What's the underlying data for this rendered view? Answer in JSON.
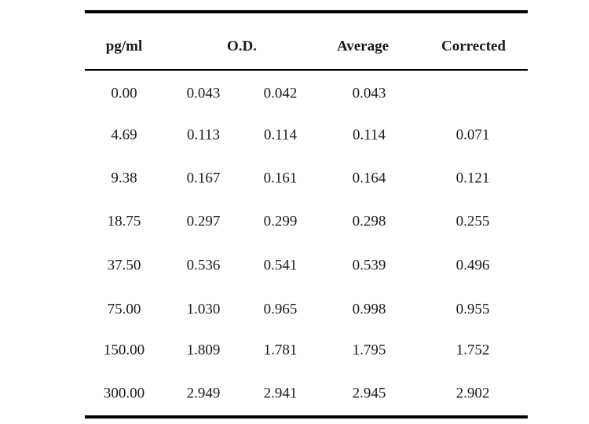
{
  "table": {
    "headers": {
      "concentration": "pg/ml",
      "od": "O.D.",
      "average": "Average",
      "corrected": "Corrected"
    },
    "rows": [
      {
        "conc": "0.00",
        "od1": "0.043",
        "od2": "0.042",
        "avg": "0.043",
        "corr": ""
      },
      {
        "conc": "4.69",
        "od1": "0.113",
        "od2": "0.114",
        "avg": "0.114",
        "corr": "0.071"
      },
      {
        "conc": "9.38",
        "od1": "0.167",
        "od2": "0.161",
        "avg": "0.164",
        "corr": "0.121"
      },
      {
        "conc": "18.75",
        "od1": "0.297",
        "od2": "0.299",
        "avg": "0.298",
        "corr": "0.255"
      },
      {
        "conc": "37.50",
        "od1": "0.536",
        "od2": "0.541",
        "avg": "0.539",
        "corr": "0.496"
      },
      {
        "conc": "75.00",
        "od1": "1.030",
        "od2": "0.965",
        "avg": "0.998",
        "corr": "0.955"
      },
      {
        "conc": "150.00",
        "od1": "1.809",
        "od2": "1.781",
        "avg": "1.795",
        "corr": "1.752"
      },
      {
        "conc": "300.00",
        "od1": "2.949",
        "od2": "2.941",
        "avg": "2.945",
        "corr": "2.902"
      }
    ]
  }
}
